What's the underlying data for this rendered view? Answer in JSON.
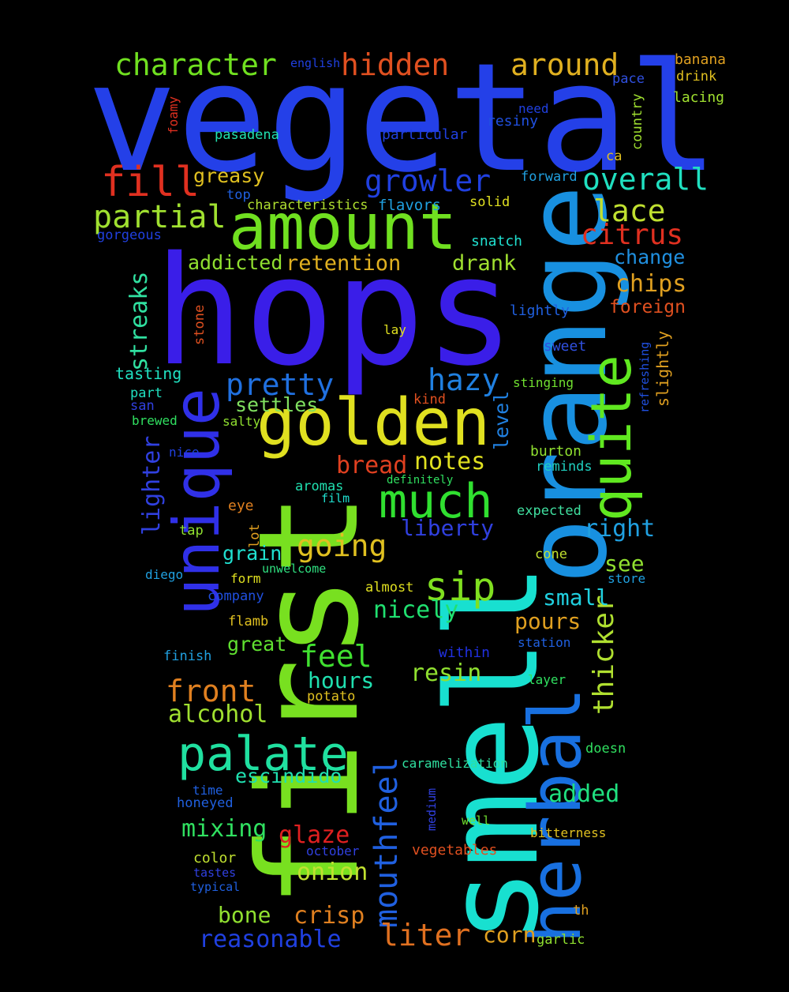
{
  "words": [
    {
      "text": "vegetal",
      "color": "#2440e8"
    },
    {
      "text": "hops",
      "color": "#3a1ee8"
    },
    {
      "text": "first",
      "color": "#78e020"
    },
    {
      "text": "smell",
      "color": "#18e0d0"
    },
    {
      "text": "orange",
      "color": "#1890e0"
    },
    {
      "text": "herbal",
      "color": "#1870e0"
    },
    {
      "text": "amount",
      "color": "#70e020"
    },
    {
      "text": "golden",
      "color": "#e0e020"
    },
    {
      "text": "unique",
      "color": "#3030e8"
    },
    {
      "text": "quite",
      "color": "#60e820"
    },
    {
      "text": "palate",
      "color": "#20e0a0"
    },
    {
      "text": "much",
      "color": "#30e030"
    },
    {
      "text": "mouthfeel",
      "color": "#2060e0"
    },
    {
      "text": "fill",
      "color": "#e03020"
    },
    {
      "text": "partial",
      "color": "#a0e030"
    },
    {
      "text": "character",
      "color": "#70e020"
    },
    {
      "text": "hidden",
      "color": "#e05020"
    },
    {
      "text": "around",
      "color": "#e0b020"
    },
    {
      "text": "growler",
      "color": "#2040e0"
    },
    {
      "text": "overall",
      "color": "#20e0c0"
    },
    {
      "text": "lace",
      "color": "#c0e030"
    },
    {
      "text": "citrus",
      "color": "#e03020"
    },
    {
      "text": "pretty",
      "color": "#2070e0"
    },
    {
      "text": "hazy",
      "color": "#2080e0"
    },
    {
      "text": "sip",
      "color": "#80e020"
    },
    {
      "text": "going",
      "color": "#e0c020"
    },
    {
      "text": "front",
      "color": "#e08020"
    },
    {
      "text": "feel",
      "color": "#40e030"
    },
    {
      "text": "liter",
      "color": "#e07020"
    },
    {
      "text": "reasonable",
      "color": "#2040e0"
    },
    {
      "text": "thicker",
      "color": "#b0e030"
    },
    {
      "text": "streaks",
      "color": "#30e0a0"
    },
    {
      "text": "lighter",
      "color": "#3040e0"
    },
    {
      "text": "greasy",
      "color": "#e0c020"
    },
    {
      "text": "addicted",
      "color": "#90e030"
    },
    {
      "text": "retention",
      "color": "#e0b020"
    },
    {
      "text": "drank",
      "color": "#a0e030"
    },
    {
      "text": "change",
      "color": "#2090e0"
    },
    {
      "text": "chips",
      "color": "#e0a020"
    },
    {
      "text": "foreign",
      "color": "#e05020"
    },
    {
      "text": "settles",
      "color": "#80e060"
    },
    {
      "text": "bread",
      "color": "#e04020"
    },
    {
      "text": "notes",
      "color": "#e0e020"
    },
    {
      "text": "level",
      "color": "#2080e0"
    },
    {
      "text": "liberty",
      "color": "#3040e0"
    },
    {
      "text": "right",
      "color": "#20a0e0"
    },
    {
      "text": "grain",
      "color": "#20e0d0"
    },
    {
      "text": "see",
      "color": "#90e030"
    },
    {
      "text": "small",
      "color": "#20d0e0"
    },
    {
      "text": "nicely",
      "color": "#20e070"
    },
    {
      "text": "pours",
      "color": "#e0a020"
    },
    {
      "text": "great",
      "color": "#60e030"
    },
    {
      "text": "hours",
      "color": "#20e0b0"
    },
    {
      "text": "resin",
      "color": "#90e030"
    },
    {
      "text": "alcohol",
      "color": "#a0e030"
    },
    {
      "text": "escindido",
      "color": "#20e0b0"
    },
    {
      "text": "added",
      "color": "#20e080"
    },
    {
      "text": "mixing",
      "color": "#30e060"
    },
    {
      "text": "glaze",
      "color": "#e02020"
    },
    {
      "text": "onion",
      "color": "#c0e030"
    },
    {
      "text": "bone",
      "color": "#90e030"
    },
    {
      "text": "crisp",
      "color": "#e08020"
    },
    {
      "text": "corn",
      "color": "#e0a020"
    },
    {
      "text": "slightly",
      "color": "#e0a020"
    },
    {
      "text": "tasting",
      "color": "#20e0c0"
    },
    {
      "text": "banana",
      "color": "#e0a020"
    },
    {
      "text": "drink",
      "color": "#e0c020"
    },
    {
      "text": "lacing",
      "color": "#a0e030"
    },
    {
      "text": "english",
      "color": "#2040e0"
    },
    {
      "text": "pace",
      "color": "#3050e0"
    },
    {
      "text": "country",
      "color": "#a0e030"
    },
    {
      "text": "need",
      "color": "#2040e0"
    },
    {
      "text": "resiny",
      "color": "#2050e0"
    },
    {
      "text": "foamy",
      "color": "#e03020"
    },
    {
      "text": "pasadena",
      "color": "#20e0b0"
    },
    {
      "text": "particular",
      "color": "#2040e0"
    },
    {
      "text": "ca",
      "color": "#e0c020"
    },
    {
      "text": "forward",
      "color": "#20a0e0"
    },
    {
      "text": "top",
      "color": "#2060e0"
    },
    {
      "text": "characteristics",
      "color": "#b0e030"
    },
    {
      "text": "flavors",
      "color": "#20a0e0"
    },
    {
      "text": "solid",
      "color": "#e0e020"
    },
    {
      "text": "gorgeous",
      "color": "#2040e0"
    },
    {
      "text": "snatch",
      "color": "#20e0d0"
    },
    {
      "text": "lightly",
      "color": "#2060e0"
    },
    {
      "text": "stone",
      "color": "#e05020"
    },
    {
      "text": "lay",
      "color": "#e0e020"
    },
    {
      "text": "sweet",
      "color": "#3050e0"
    },
    {
      "text": "refreshing",
      "color": "#2050e0"
    },
    {
      "text": "part",
      "color": "#20e0c0"
    },
    {
      "text": "san",
      "color": "#3040e0"
    },
    {
      "text": "stinging",
      "color": "#70e030"
    },
    {
      "text": "kind",
      "color": "#e05020"
    },
    {
      "text": "brewed",
      "color": "#30e060"
    },
    {
      "text": "salty",
      "color": "#90e030"
    },
    {
      "text": "nice",
      "color": "#2040e0"
    },
    {
      "text": "burton",
      "color": "#90e030"
    },
    {
      "text": "reminds",
      "color": "#20d0c0"
    },
    {
      "text": "aromas",
      "color": "#20e0b0"
    },
    {
      "text": "definitely",
      "color": "#30e060"
    },
    {
      "text": "film",
      "color": "#20e0d0"
    },
    {
      "text": "eye",
      "color": "#e08020"
    },
    {
      "text": "expected",
      "color": "#40e0a0"
    },
    {
      "text": "tap",
      "color": "#90e030"
    },
    {
      "text": "lot",
      "color": "#e0a020"
    },
    {
      "text": "cone",
      "color": "#c0e030"
    },
    {
      "text": "unwelcome",
      "color": "#30e080"
    },
    {
      "text": "diego",
      "color": "#20a0e0"
    },
    {
      "text": "store",
      "color": "#20a0e0"
    },
    {
      "text": "form",
      "color": "#e0e020"
    },
    {
      "text": "almost",
      "color": "#e0e020"
    },
    {
      "text": "company",
      "color": "#2050e0"
    },
    {
      "text": "flamb",
      "color": "#e0c020"
    },
    {
      "text": "station",
      "color": "#2060e0"
    },
    {
      "text": "finish",
      "color": "#20a0e0"
    },
    {
      "text": "within",
      "color": "#2030e0"
    },
    {
      "text": "layer",
      "color": "#30e060"
    },
    {
      "text": "potato",
      "color": "#e0c020"
    },
    {
      "text": "doesn",
      "color": "#30e060"
    },
    {
      "text": "caramelization",
      "color": "#30e0a0"
    },
    {
      "text": "time",
      "color": "#2060e0"
    },
    {
      "text": "medium",
      "color": "#3040e0"
    },
    {
      "text": "honeyed",
      "color": "#2060e0"
    },
    {
      "text": "well",
      "color": "#70e030"
    },
    {
      "text": "bitterness",
      "color": "#e0c020"
    },
    {
      "text": "october",
      "color": "#3040e0"
    },
    {
      "text": "color",
      "color": "#c0e030"
    },
    {
      "text": "vegetables",
      "color": "#e05020"
    },
    {
      "text": "tastes",
      "color": "#3040e0"
    },
    {
      "text": "typical",
      "color": "#2060e0"
    },
    {
      "text": "th",
      "color": "#e0a020"
    },
    {
      "text": "garlic",
      "color": "#90e030"
    }
  ]
}
